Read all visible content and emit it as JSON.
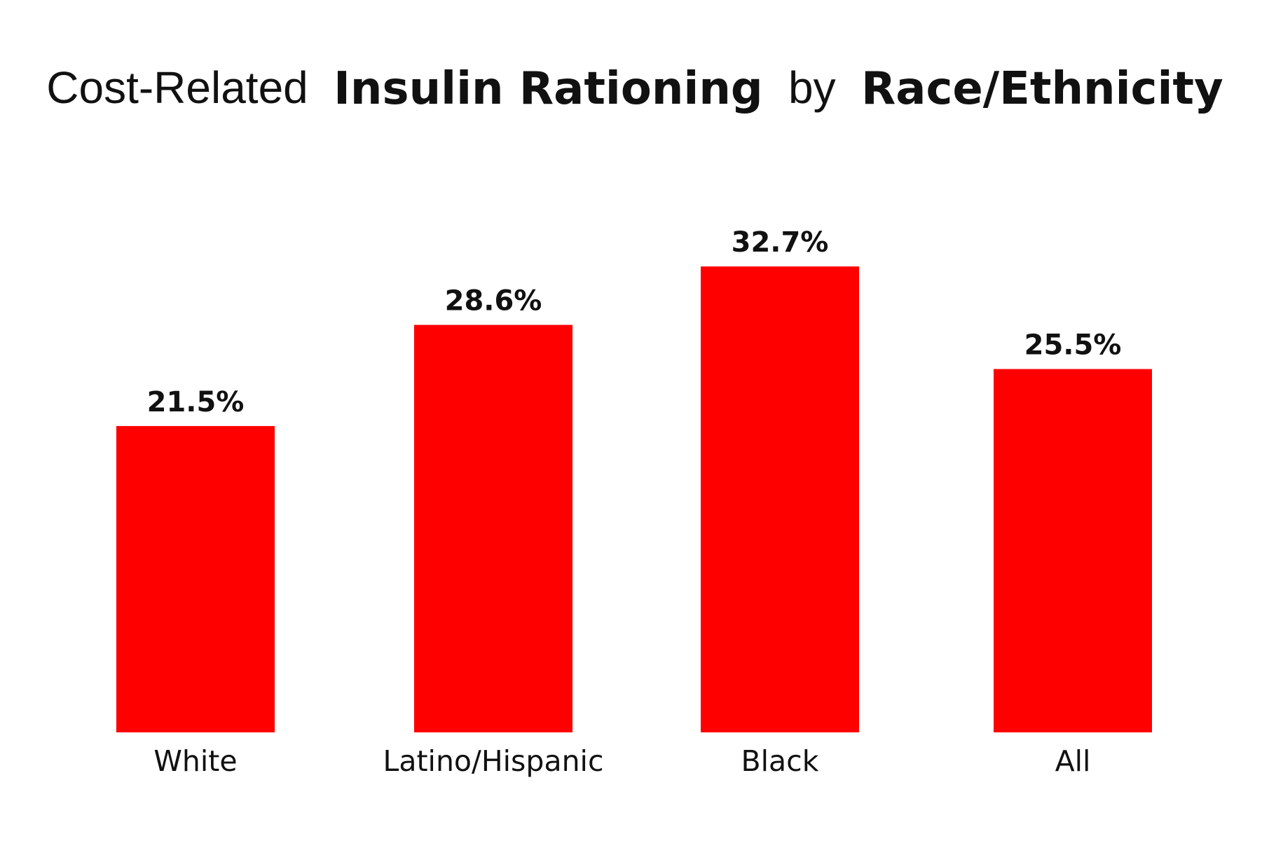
{
  "chart_data": {
    "type": "bar",
    "title": [
      "Cost-Related",
      "Insulin Rationing",
      "by",
      "Race/Ethnicity"
    ],
    "categories": [
      "White",
      "Latino/Hispanic",
      "Black",
      "All"
    ],
    "values": [
      21.5,
      28.6,
      32.7,
      25.5
    ],
    "value_labels": [
      "21.5%",
      "28.6%",
      "32.7%",
      "25.5%"
    ],
    "color": "#ff0000"
  }
}
